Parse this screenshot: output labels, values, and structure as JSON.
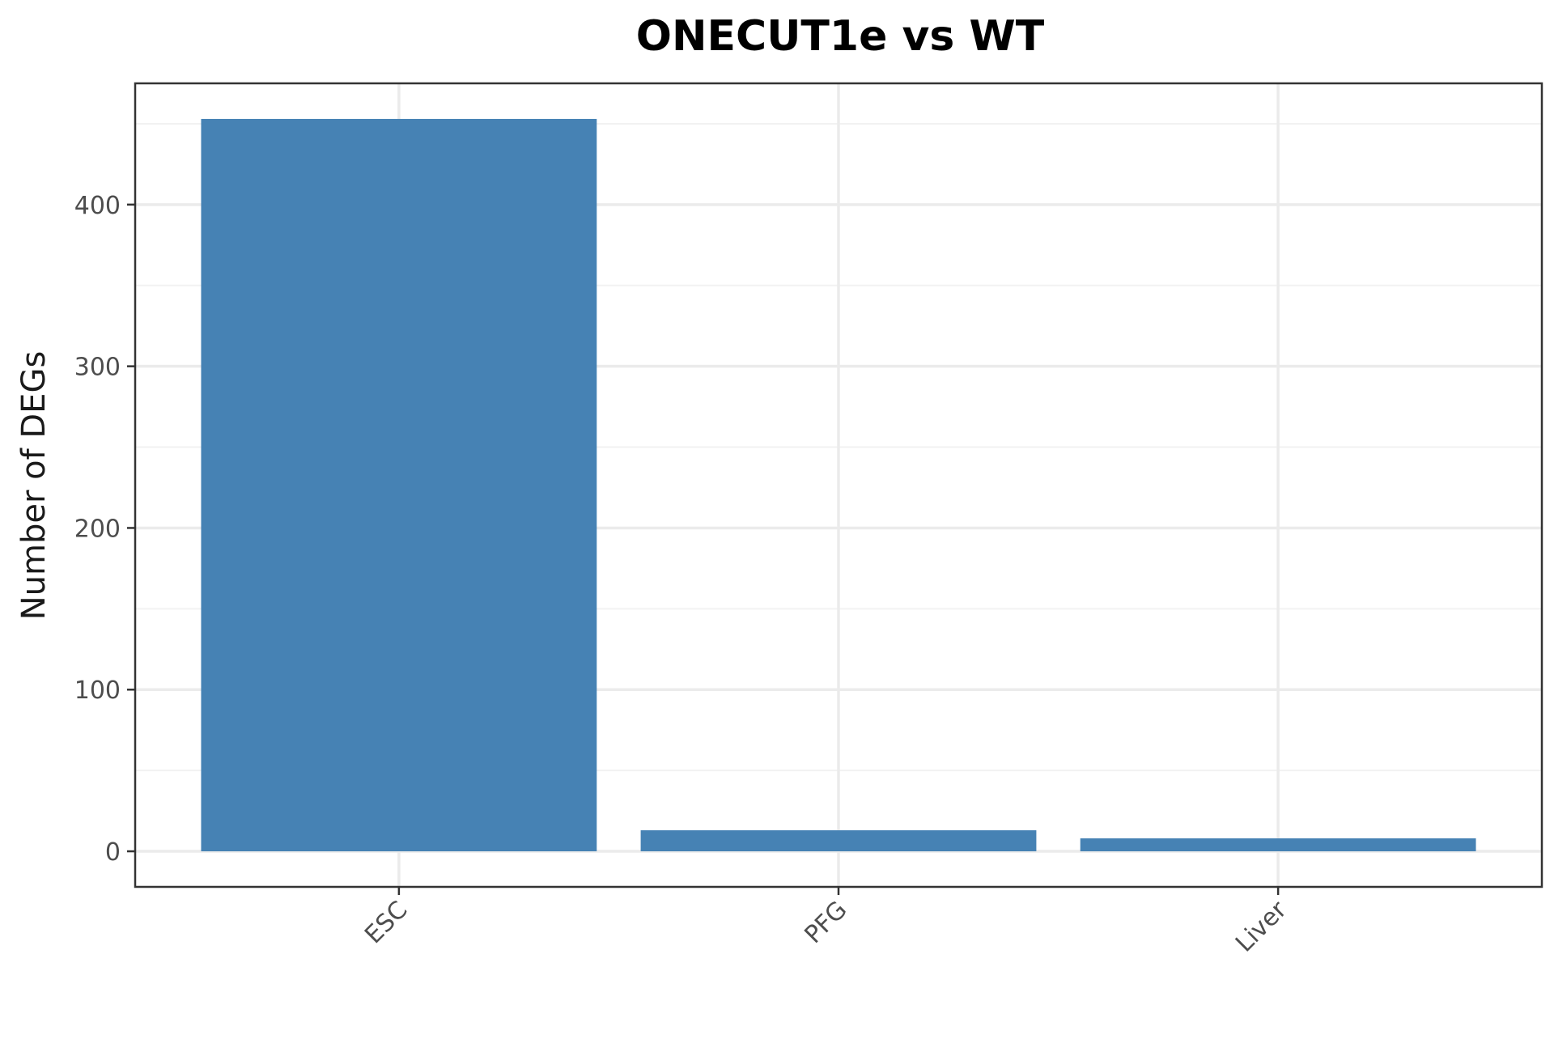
{
  "chart_data": {
    "type": "bar",
    "title": "ONECUT1e vs WT",
    "xlabel": "",
    "ylabel": "Number of DEGs",
    "categories": [
      "ESC",
      "PFG",
      "Liver"
    ],
    "values": [
      453,
      13,
      8
    ],
    "ylim": [
      -22,
      475
    ],
    "yticks": [
      0,
      100,
      200,
      300,
      400
    ],
    "grid": true,
    "legend": "none",
    "bar_color": "#4682B4"
  }
}
